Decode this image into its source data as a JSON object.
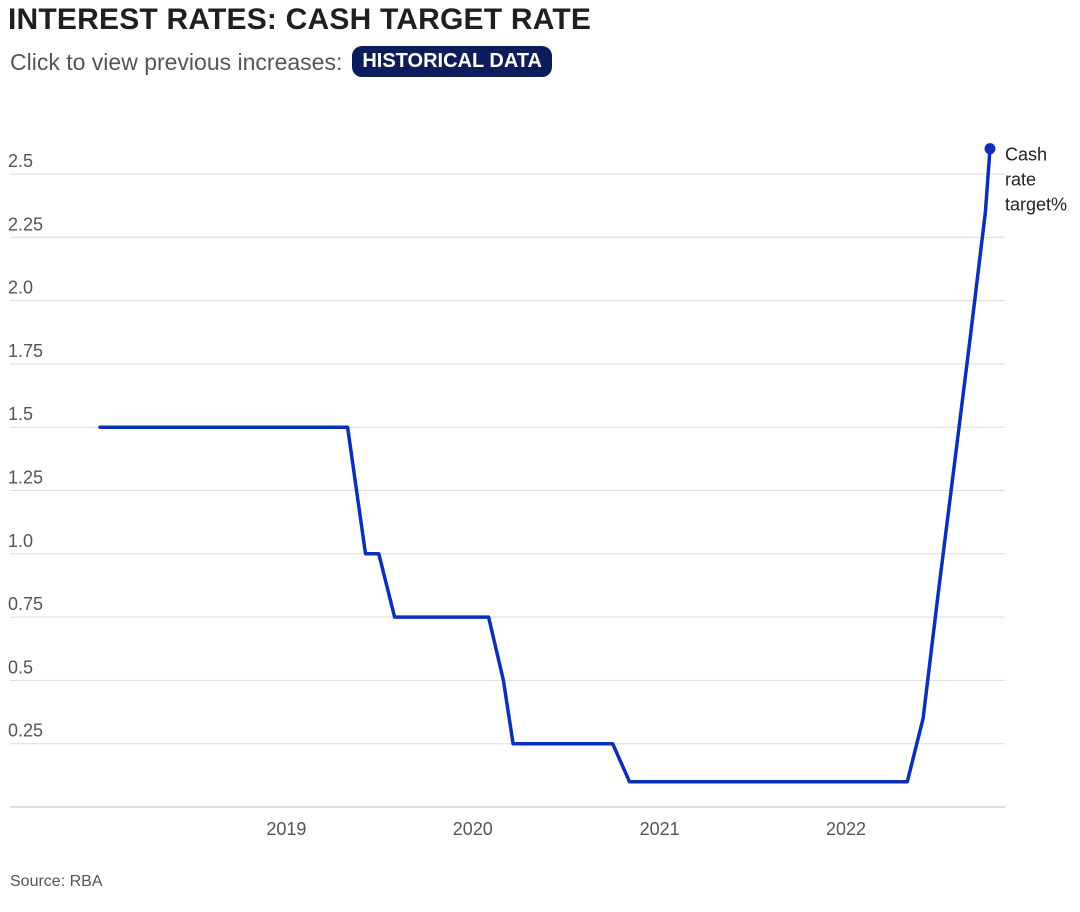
{
  "header": {
    "title": "INTEREST RATES: CASH TARGET RATE",
    "subtitle": "Click to view previous increases:",
    "button_label": "HISTORICAL DATA"
  },
  "source": "Source: RBA",
  "colors": {
    "line": "#0b2fb8",
    "grid": "#dddddd",
    "button_bg": "#0b1e5b"
  },
  "chart_data": {
    "type": "line",
    "title": "INTEREST RATES: CASH TARGET RATE",
    "xlabel": "",
    "ylabel": "",
    "xlim": [
      "2018-01-01",
      "2022-10-10"
    ],
    "ylim": [
      0,
      2.6
    ],
    "grid": "horizontal",
    "y_ticks": [
      {
        "value": 0.25,
        "label": "0.25"
      },
      {
        "value": 0.5,
        "label": "0.5"
      },
      {
        "value": 0.75,
        "label": "0.75"
      },
      {
        "value": 1.0,
        "label": "1.0"
      },
      {
        "value": 1.25,
        "label": "1.25"
      },
      {
        "value": 1.5,
        "label": "1.5"
      },
      {
        "value": 1.75,
        "label": "1.75"
      },
      {
        "value": 2.0,
        "label": "2.0"
      },
      {
        "value": 2.25,
        "label": "2.25"
      },
      {
        "value": 2.5,
        "label": "2.5"
      }
    ],
    "x_ticks": [
      {
        "value": "2019-01-01",
        "label": "2019"
      },
      {
        "value": "2020-01-01",
        "label": "2020"
      },
      {
        "value": "2021-01-01",
        "label": "2021"
      },
      {
        "value": "2022-01-01",
        "label": "2022"
      }
    ],
    "series": [
      {
        "name": "Cash rate target%",
        "points": [
          {
            "x": "2018-01-01",
            "y": 1.5
          },
          {
            "x": "2019-05-01",
            "y": 1.5
          },
          {
            "x": "2019-06-05",
            "y": 1.0
          },
          {
            "x": "2019-07-01",
            "y": 1.0
          },
          {
            "x": "2019-08-01",
            "y": 0.75
          },
          {
            "x": "2020-02-01",
            "y": 0.75
          },
          {
            "x": "2020-03-01",
            "y": 0.5
          },
          {
            "x": "2020-03-20",
            "y": 0.25
          },
          {
            "x": "2020-10-01",
            "y": 0.25
          },
          {
            "x": "2020-11-03",
            "y": 0.1
          },
          {
            "x": "2022-05-01",
            "y": 0.1
          },
          {
            "x": "2022-06-01",
            "y": 0.35
          },
          {
            "x": "2022-07-01",
            "y": 0.85
          },
          {
            "x": "2022-08-01",
            "y": 1.35
          },
          {
            "x": "2022-09-01",
            "y": 1.85
          },
          {
            "x": "2022-10-01",
            "y": 2.35
          },
          {
            "x": "2022-10-10",
            "y": 2.6
          }
        ],
        "end_label": [
          "Cash",
          "rate",
          "target%"
        ]
      }
    ]
  }
}
